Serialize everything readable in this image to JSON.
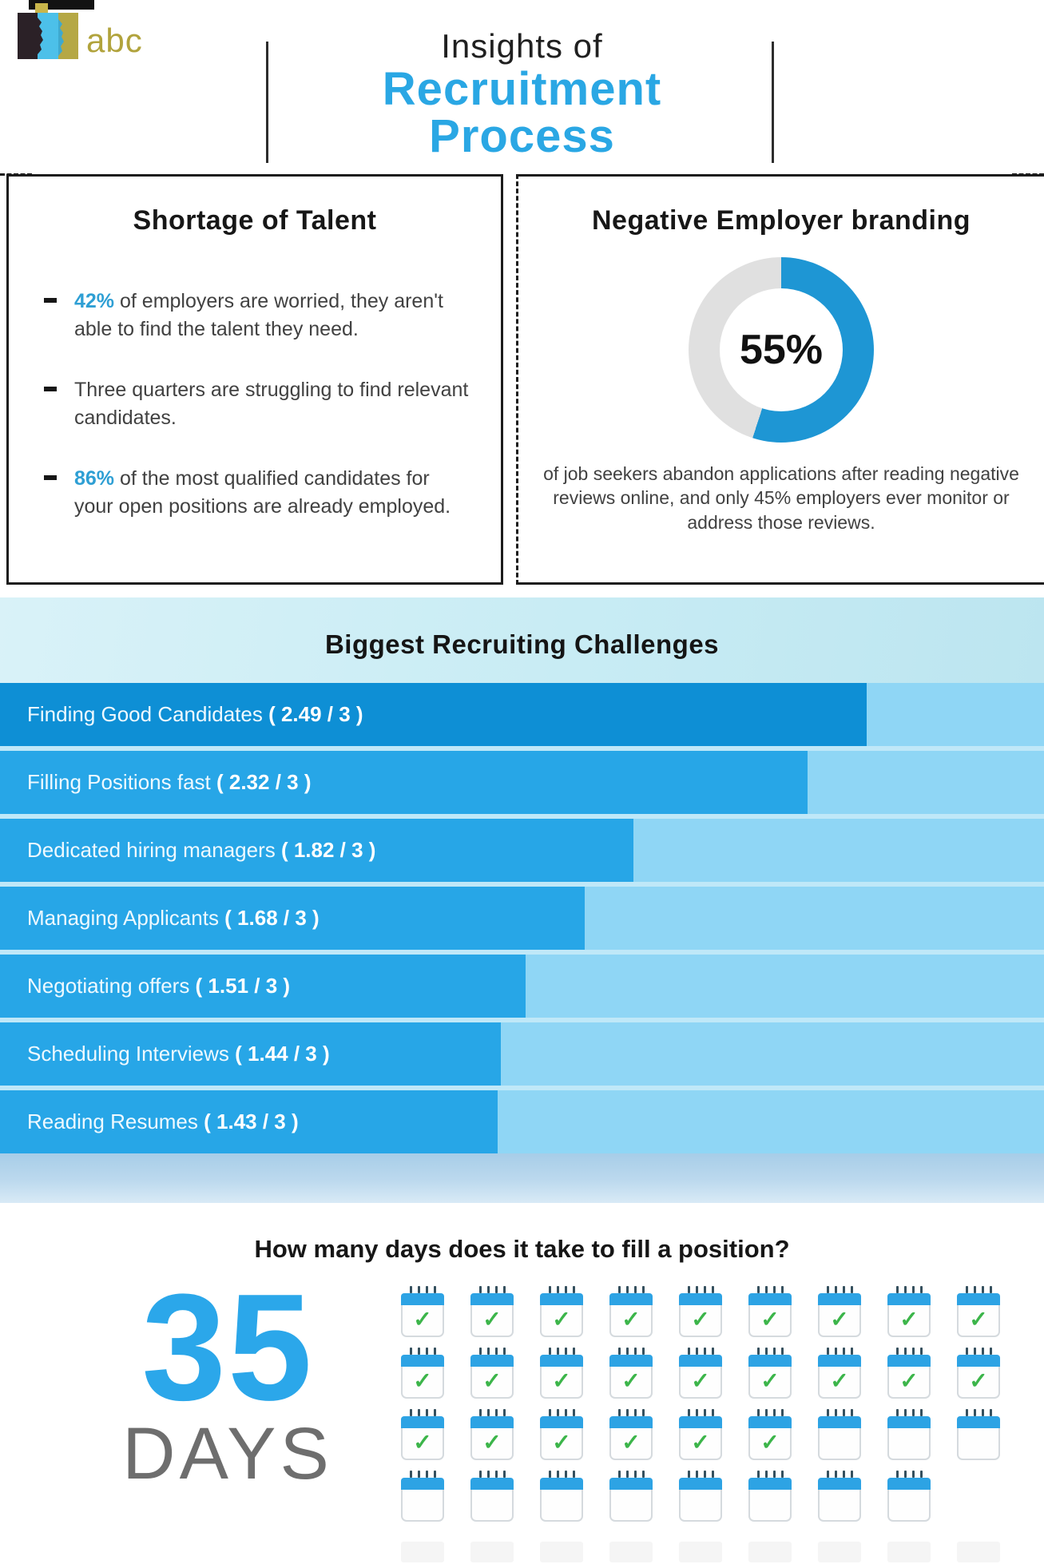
{
  "header": {
    "logo_text": "abc",
    "title_line1": "Insights of",
    "title_line2": "Recruitment",
    "title_line3": "Process"
  },
  "shortage_box": {
    "title": "Shortage of Talent",
    "bullets": [
      {
        "highlight": "42%",
        "text": " of employers are worried, they aren't able to find the talent they need."
      },
      {
        "highlight": "",
        "text": "Three quarters are struggling to find relevant candidates."
      },
      {
        "highlight": "86%",
        "text": " of the most qualified candidates for your open positions are already employed."
      }
    ]
  },
  "branding_box": {
    "title": "Negative Employer branding",
    "donut_label": "55%",
    "caption": "of job seekers abandon applications after reading negative reviews online, and only 45% employers ever monitor or address those reviews.",
    "colors": {
      "arc": "#1e96d4",
      "track": "#e0e0e0"
    }
  },
  "chart_data": [
    {
      "type": "pie",
      "title": "Negative Employer branding",
      "labels": [
        "job seekers who abandon applications after reading negative reviews",
        "others"
      ],
      "values": [
        55,
        45
      ],
      "center_label": "55%",
      "colors": [
        "#1e96d4",
        "#e0e0e0"
      ]
    },
    {
      "type": "bar",
      "title": "Biggest Recruiting Challenges",
      "orientation": "horizontal",
      "max_value": 3,
      "categories": [
        "Finding Good Candidates",
        "Filling Positions fast",
        "Dedicated hiring managers",
        "Managing Applicants",
        "Negotiating offers",
        "Scheduling Interviews",
        "Reading Resumes"
      ],
      "values": [
        2.49,
        2.32,
        1.82,
        1.68,
        1.51,
        1.44,
        1.43
      ],
      "value_labels": [
        "( 2.49 / 3 )",
        "( 2.32 / 3 )",
        "( 1.82 / 3 )",
        "( 1.68 / 3 )",
        "( 1.51 / 3 )",
        "( 1.44 / 3 )",
        "( 1.43 / 3 )"
      ],
      "xlim": [
        0,
        3
      ],
      "colors": {
        "first_bar": "#0e8fd5",
        "bar": "#27a6e7",
        "track": "#8fd6f5"
      }
    }
  ],
  "days_section": {
    "question": "How many days does it take to fill a position?",
    "number": "35",
    "unit": "DAYS",
    "total_calendars": 35,
    "checked_calendars": 24,
    "calendar_rows": [
      {
        "count": 9,
        "checked": 9
      },
      {
        "count": 9,
        "checked": 9
      },
      {
        "count": 9,
        "checked": 6
      },
      {
        "count": 8,
        "checked": 0
      }
    ]
  }
}
